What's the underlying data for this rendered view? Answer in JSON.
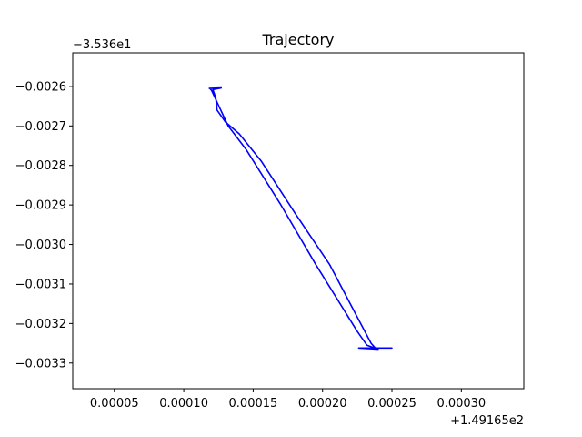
{
  "chart_data": {
    "type": "line",
    "title": "Trajectory",
    "xlabel": "",
    "ylabel": "",
    "x_offset_label": "+1.49165e2",
    "y_offset_label": "−3.536e1",
    "x_offset": 149.165,
    "y_offset": -35.36,
    "xlim": [
      2e-05,
      0.000345
    ],
    "ylim": [
      -0.003365,
      -0.002515
    ],
    "x_ticks": [
      {
        "value": 5e-05,
        "label": "0.00005"
      },
      {
        "value": 0.0001,
        "label": "0.00010"
      },
      {
        "value": 0.00015,
        "label": "0.00015"
      },
      {
        "value": 0.0002,
        "label": "0.00020"
      },
      {
        "value": 0.00025,
        "label": "0.00025"
      },
      {
        "value": 0.0003,
        "label": "0.00030"
      }
    ],
    "y_ticks": [
      {
        "value": -0.0026,
        "label": "−0.0026"
      },
      {
        "value": -0.0027,
        "label": "−0.0027"
      },
      {
        "value": -0.0028,
        "label": "−0.0028"
      },
      {
        "value": -0.0029,
        "label": "−0.0029"
      },
      {
        "value": -0.003,
        "label": "−0.0030"
      },
      {
        "value": -0.0031,
        "label": "−0.0031"
      },
      {
        "value": -0.0032,
        "label": "−0.0032"
      },
      {
        "value": -0.0033,
        "label": "−0.0033"
      }
    ],
    "grid": false,
    "series": [
      {
        "color": "#0000ff",
        "points": [
          [
            0.000118,
            -0.002605
          ],
          [
            0.000127,
            -0.002604
          ],
          [
            0.000121,
            -0.002608
          ],
          [
            0.000123,
            -0.002628
          ],
          [
            0.000124,
            -0.00266
          ],
          [
            0.00013,
            -0.00269
          ],
          [
            0.00014,
            -0.00272
          ],
          [
            0.000156,
            -0.00279
          ],
          [
            0.00018,
            -0.00292
          ],
          [
            0.000205,
            -0.00305
          ],
          [
            0.00022,
            -0.00315
          ],
          [
            0.000235,
            -0.00325
          ],
          [
            0.000238,
            -0.003262
          ],
          [
            0.00025,
            -0.003262
          ],
          [
            0.000238,
            -0.003262
          ],
          [
            0.000226,
            -0.003262
          ],
          [
            0.00024,
            -0.003265
          ],
          [
            0.000232,
            -0.003255
          ],
          [
            0.000225,
            -0.00322
          ],
          [
            0.000195,
            -0.00305
          ],
          [
            0.00017,
            -0.0029
          ],
          [
            0.000145,
            -0.00276
          ],
          [
            0.000132,
            -0.0027
          ],
          [
            0.00012,
            -0.00261
          ],
          [
            0.000119,
            -0.002606
          ]
        ]
      }
    ]
  }
}
